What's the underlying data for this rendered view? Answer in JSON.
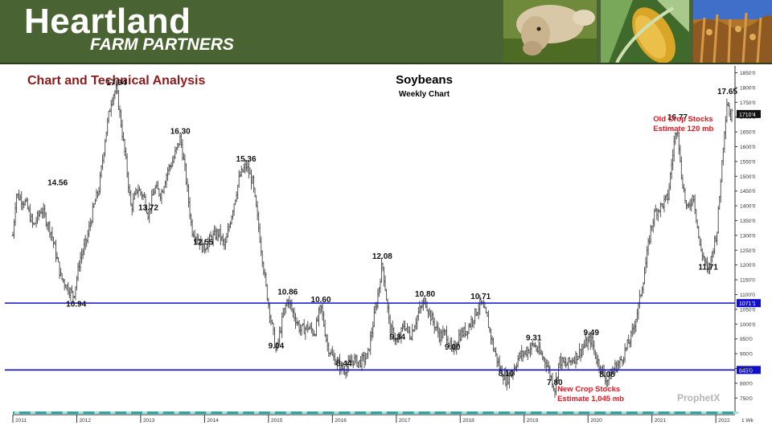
{
  "header": {
    "brand": "Heartland",
    "brand_sub": "FARM PARTNERS",
    "section_title": "Chart and Technical Analysis",
    "photos": [
      "cow-photo",
      "corn-photo",
      "soybean-field-photo"
    ]
  },
  "watermark": "ProphetX",
  "chart_data": {
    "type": "candlestick",
    "title": "Soybeans",
    "subtitle": "Weekly Chart",
    "xlabel": "",
    "ylabel": "",
    "x_ticks": [
      "2011",
      "2012",
      "2013",
      "2014",
      "2015",
      "2016",
      "2017",
      "2018",
      "2019",
      "2020",
      "2021",
      "2022"
    ],
    "x_range": [
      2011.0,
      2022.3
    ],
    "y_ticks": [
      "1850'0",
      "1800'0",
      "1750'0",
      "1700'0",
      "1650'0",
      "1600'0",
      "1550'0",
      "1500'0",
      "1450'0",
      "1400'0",
      "1350'0",
      "1300'0",
      "1250'0",
      "1200'0",
      "1150'0",
      "1100'0",
      "1050'0",
      "1000'0",
      "950'0",
      "900'0",
      "850'0",
      "800'0",
      "750'0"
    ],
    "y_range": [
      7.1,
      18.65
    ],
    "bottom_axis_label": "1 Wk",
    "last_price_label": "1710'4",
    "last_price": 17.105,
    "price_path": [
      [
        2011.0,
        13.0
      ],
      [
        2011.05,
        14.4
      ],
      [
        2011.2,
        14.1
      ],
      [
        2011.32,
        13.3
      ],
      [
        2011.45,
        13.9
      ],
      [
        2011.6,
        13.1
      ],
      [
        2011.75,
        11.6
      ],
      [
        2011.9,
        11.1
      ],
      [
        2011.95,
        10.94
      ],
      [
        2012.05,
        12.2
      ],
      [
        2012.15,
        12.8
      ],
      [
        2012.28,
        14.1
      ],
      [
        2012.35,
        14.6
      ],
      [
        2012.45,
        16.4
      ],
      [
        2012.55,
        17.7
      ],
      [
        2012.62,
        17.94
      ],
      [
        2012.68,
        17.0
      ],
      [
        2012.78,
        15.3
      ],
      [
        2012.85,
        13.9
      ],
      [
        2012.95,
        14.6
      ],
      [
        2013.05,
        14.3
      ],
      [
        2013.12,
        13.72
      ],
      [
        2013.22,
        14.6
      ],
      [
        2013.32,
        14.4
      ],
      [
        2013.42,
        15.2
      ],
      [
        2013.5,
        15.5
      ],
      [
        2013.62,
        16.3
      ],
      [
        2013.7,
        15.1
      ],
      [
        2013.8,
        13.2
      ],
      [
        2013.9,
        12.9
      ],
      [
        2013.98,
        12.55
      ],
      [
        2014.1,
        12.9
      ],
      [
        2014.22,
        13.1
      ],
      [
        2014.32,
        12.6
      ],
      [
        2014.42,
        13.7
      ],
      [
        2014.55,
        15.0
      ],
      [
        2014.65,
        15.36
      ],
      [
        2014.75,
        14.8
      ],
      [
        2014.85,
        13.2
      ],
      [
        2014.95,
        11.4
      ],
      [
        2015.02,
        10.4
      ],
      [
        2015.08,
        9.6
      ],
      [
        2015.12,
        9.04
      ],
      [
        2015.22,
        10.2
      ],
      [
        2015.3,
        10.86
      ],
      [
        2015.4,
        10.3
      ],
      [
        2015.5,
        9.8
      ],
      [
        2015.62,
        9.9
      ],
      [
        2015.72,
        9.7
      ],
      [
        2015.82,
        10.6
      ],
      [
        2015.92,
        9.3
      ],
      [
        2016.0,
        8.9
      ],
      [
        2016.08,
        8.7
      ],
      [
        2016.18,
        8.44
      ],
      [
        2016.32,
        8.8
      ],
      [
        2016.42,
        8.7
      ],
      [
        2016.55,
        8.9
      ],
      [
        2016.65,
        10.2
      ],
      [
        2016.72,
        11.1
      ],
      [
        2016.78,
        12.08
      ],
      [
        2016.84,
        11.0
      ],
      [
        2016.9,
        9.8
      ],
      [
        2016.95,
        9.7
      ],
      [
        2017.02,
        9.34
      ],
      [
        2017.12,
        10.0
      ],
      [
        2017.22,
        9.6
      ],
      [
        2017.35,
        10.4
      ],
      [
        2017.45,
        10.8
      ],
      [
        2017.55,
        10.2
      ],
      [
        2017.68,
        9.6
      ],
      [
        2017.78,
        9.7
      ],
      [
        2017.88,
        9.0
      ],
      [
        2017.98,
        9.6
      ],
      [
        2018.1,
        9.8
      ],
      [
        2018.22,
        10.3
      ],
      [
        2018.32,
        10.71
      ],
      [
        2018.42,
        10.2
      ],
      [
        2018.52,
        9.2
      ],
      [
        2018.62,
        8.5
      ],
      [
        2018.72,
        8.1
      ],
      [
        2018.82,
        8.4
      ],
      [
        2018.92,
        8.9
      ],
      [
        2019.05,
        9.1
      ],
      [
        2019.15,
        9.31
      ],
      [
        2019.25,
        9.0
      ],
      [
        2019.35,
        8.7
      ],
      [
        2019.42,
        8.2
      ],
      [
        2019.48,
        7.8
      ],
      [
        2019.55,
        8.8
      ],
      [
        2019.65,
        8.6
      ],
      [
        2019.75,
        8.8
      ],
      [
        2019.85,
        9.0
      ],
      [
        2019.95,
        9.3
      ],
      [
        2020.05,
        9.49
      ],
      [
        2020.12,
        8.9
      ],
      [
        2020.2,
        8.5
      ],
      [
        2020.3,
        8.08
      ],
      [
        2020.4,
        8.5
      ],
      [
        2020.5,
        8.7
      ],
      [
        2020.6,
        9.2
      ],
      [
        2020.68,
        9.6
      ],
      [
        2020.78,
        10.5
      ],
      [
        2020.88,
        11.7
      ],
      [
        2020.98,
        13.2
      ],
      [
        2021.05,
        13.8
      ],
      [
        2021.15,
        14.0
      ],
      [
        2021.25,
        14.3
      ],
      [
        2021.35,
        16.2
      ],
      [
        2021.4,
        16.77
      ],
      [
        2021.45,
        15.2
      ],
      [
        2021.55,
        13.8
      ],
      [
        2021.65,
        14.4
      ],
      [
        2021.75,
        12.6
      ],
      [
        2021.82,
        12.2
      ],
      [
        2021.88,
        11.71
      ],
      [
        2021.95,
        12.5
      ],
      [
        2022.02,
        13.2
      ],
      [
        2022.08,
        15.0
      ],
      [
        2022.13,
        16.5
      ],
      [
        2022.18,
        17.65
      ],
      [
        2022.22,
        17.0
      ],
      [
        2022.26,
        17.1
      ]
    ],
    "horizontal_lines": [
      {
        "value": 10.711,
        "label": "1071'1",
        "color": "#1010cc"
      },
      {
        "value": 8.45,
        "label": "845'0",
        "color": "#1010cc"
      }
    ],
    "price_labels": [
      {
        "x": 2011.7,
        "y": 14.56,
        "text": "14.56"
      },
      {
        "x": 2011.99,
        "y": 10.94,
        "text": "10.94"
      },
      {
        "x": 2012.62,
        "y": 17.94,
        "text": "17.94"
      },
      {
        "x": 2013.12,
        "y": 13.72,
        "text": "13.72"
      },
      {
        "x": 2013.62,
        "y": 16.3,
        "text": "16.30"
      },
      {
        "x": 2013.98,
        "y": 12.55,
        "text": "12.55"
      },
      {
        "x": 2014.65,
        "y": 15.36,
        "text": "15.36"
      },
      {
        "x": 2015.12,
        "y": 9.04,
        "text": "9.04"
      },
      {
        "x": 2015.3,
        "y": 10.86,
        "text": "10.86"
      },
      {
        "x": 2015.82,
        "y": 10.6,
        "text": "10.60"
      },
      {
        "x": 2016.18,
        "y": 8.44,
        "text": "8.44"
      },
      {
        "x": 2016.78,
        "y": 12.08,
        "text": "12.08"
      },
      {
        "x": 2017.02,
        "y": 9.34,
        "text": "9.34"
      },
      {
        "x": 2017.45,
        "y": 10.8,
        "text": "10.80"
      },
      {
        "x": 2017.88,
        "y": 9.0,
        "text": "9.00"
      },
      {
        "x": 2018.32,
        "y": 10.71,
        "text": "10.71"
      },
      {
        "x": 2018.72,
        "y": 8.1,
        "text": "8.10"
      },
      {
        "x": 2019.15,
        "y": 9.31,
        "text": "9.31"
      },
      {
        "x": 2019.48,
        "y": 7.8,
        "text": "7.80"
      },
      {
        "x": 2020.05,
        "y": 9.49,
        "text": "9.49"
      },
      {
        "x": 2020.3,
        "y": 8.08,
        "text": "8.08"
      },
      {
        "x": 2021.4,
        "y": 16.77,
        "text": "16.77"
      },
      {
        "x": 2021.88,
        "y": 11.71,
        "text": "11.71"
      },
      {
        "x": 2022.18,
        "y": 17.65,
        "text": "17.65"
      }
    ],
    "annotations": [
      {
        "x": 2021.02,
        "y": 16.85,
        "lines": [
          "Old Crop Stocks",
          "Estimate 120 mb"
        ],
        "color": "#e8141e"
      },
      {
        "x": 2019.52,
        "y": 7.73,
        "lines": [
          "New Crop Stocks",
          "Estimate 1,045 mb"
        ],
        "color": "#e8141e"
      }
    ],
    "colors": {
      "bars": "#555555",
      "grid_line": "#1010cc",
      "annotation": "#e8141e",
      "time_strip": "#2aa8a0"
    }
  }
}
